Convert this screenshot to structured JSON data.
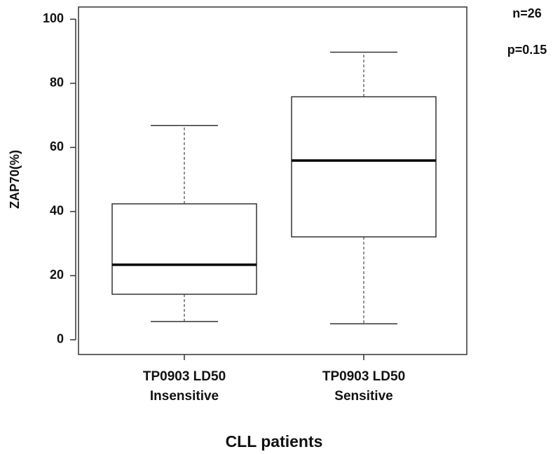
{
  "chart_data": {
    "type": "boxplot",
    "y_label": "ZAP70(%)",
    "x_label": "CLL patients",
    "annotations": [
      "n=26",
      "p=0.15"
    ],
    "categories": [
      [
        "TP0903 LD50",
        "Insensitive"
      ],
      [
        "TP0903 LD50",
        "Sensitive"
      ]
    ],
    "boxes": [
      {
        "whisker_low": 5.7,
        "q1": 14.2,
        "median": 23.4,
        "q3": 42.4,
        "whisker_high": 66.8
      },
      {
        "whisker_low": 5.0,
        "q1": 32.1,
        "median": 55.9,
        "q3": 75.8,
        "whisker_high": 89.7
      }
    ],
    "ylim": [
      -4.6,
      103.8
    ],
    "yticks": [
      0,
      20,
      40,
      60,
      80,
      100
    ],
    "color": "#000000"
  }
}
